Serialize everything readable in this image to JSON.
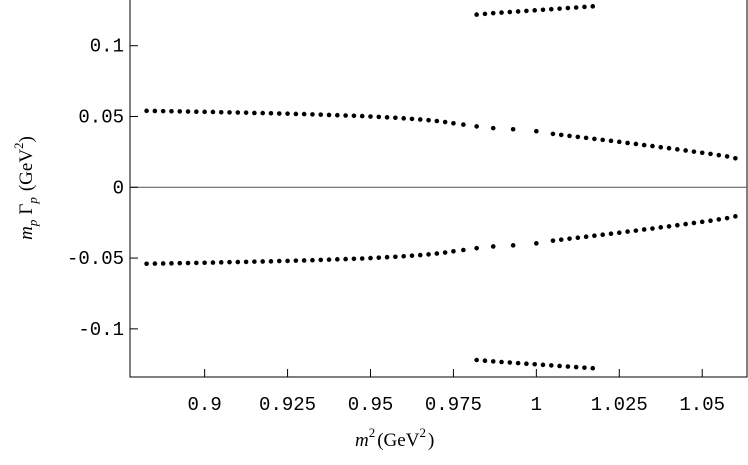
{
  "chart_data": {
    "type": "scatter",
    "xlabel_parts": {
      "base": "m",
      "base_sup": "2",
      "unit_open": "(GeV",
      "unit_sup": "2",
      "unit_close": ")"
    },
    "ylabel_parts": {
      "m": "m",
      "m_sub": "p",
      "gamma": "Γ",
      "gamma_sub": "p",
      "unit_open": "(GeV",
      "unit_sup": "2",
      "unit_close": ")"
    },
    "xlim": [
      0.8775,
      1.0635
    ],
    "ylim": [
      -0.134,
      0.133
    ],
    "x_ticks": [
      {
        "value": 0.9,
        "label": "0.9"
      },
      {
        "value": 0.925,
        "label": "0.925"
      },
      {
        "value": 0.95,
        "label": "0.95"
      },
      {
        "value": 0.975,
        "label": "0.975"
      },
      {
        "value": 1.0,
        "label": "1"
      },
      {
        "value": 1.025,
        "label": "1.025"
      },
      {
        "value": 1.05,
        "label": "1.05"
      }
    ],
    "y_ticks": [
      {
        "value": 0.1,
        "label": "0.1"
      },
      {
        "value": 0.05,
        "label": "0.05"
      },
      {
        "value": 0.0,
        "label": "0"
      },
      {
        "value": -0.05,
        "label": "-0.05"
      },
      {
        "value": -0.1,
        "label": "-0.1"
      }
    ],
    "zero_line": true,
    "grid": false,
    "series": [
      {
        "x": [
          0.8825,
          0.885,
          0.8875,
          0.89,
          0.8925,
          0.895,
          0.8975,
          0.9,
          0.9025,
          0.905,
          0.9075,
          0.91,
          0.9125,
          0.915,
          0.9175,
          0.92,
          0.9225,
          0.925,
          0.9275,
          0.93,
          0.9325,
          0.935,
          0.9375,
          0.94,
          0.9425,
          0.945,
          0.9475,
          0.95,
          0.9525,
          0.955,
          0.9575,
          0.96,
          0.9625,
          0.965,
          0.9675,
          0.97,
          0.9725,
          0.975,
          0.978,
          0.982,
          0.987,
          0.993,
          1.0,
          1.005,
          1.0075,
          1.01,
          1.0125,
          1.015,
          1.0175,
          1.02,
          1.0225,
          1.025,
          1.0275,
          1.03,
          1.0325,
          1.035,
          1.0375,
          1.04,
          1.0425,
          1.045,
          1.0475,
          1.05,
          1.0525,
          1.055,
          1.0575,
          1.06
        ],
        "y": [
          0.054,
          0.0539,
          0.0538,
          0.0537,
          0.0536,
          0.0535,
          0.0534,
          0.0533,
          0.0532,
          0.053,
          0.0529,
          0.0528,
          0.0527,
          0.0525,
          0.0524,
          0.0523,
          0.0521,
          0.052,
          0.0518,
          0.0517,
          0.0515,
          0.0513,
          0.0511,
          0.0509,
          0.0507,
          0.0505,
          0.0503,
          0.05,
          0.0497,
          0.0494,
          0.0491,
          0.0487,
          0.0483,
          0.0479,
          0.0474,
          0.0468,
          0.0461,
          0.0452,
          0.0443,
          0.043,
          0.0418,
          0.041,
          0.0396,
          0.0377,
          0.037,
          0.0363,
          0.0356,
          0.0349,
          0.0342,
          0.0335,
          0.0328,
          0.0321,
          0.0313,
          0.0306,
          0.0298,
          0.0291,
          0.0283,
          0.0276,
          0.0268,
          0.026,
          0.0252,
          0.0244,
          0.0236,
          0.0227,
          0.0218,
          0.0205
        ]
      },
      {
        "x": [
          0.8825,
          0.885,
          0.8875,
          0.89,
          0.8925,
          0.895,
          0.8975,
          0.9,
          0.9025,
          0.905,
          0.9075,
          0.91,
          0.9125,
          0.915,
          0.9175,
          0.92,
          0.9225,
          0.925,
          0.9275,
          0.93,
          0.9325,
          0.935,
          0.9375,
          0.94,
          0.9425,
          0.945,
          0.9475,
          0.95,
          0.9525,
          0.955,
          0.9575,
          0.96,
          0.9625,
          0.965,
          0.9675,
          0.97,
          0.9725,
          0.975,
          0.978,
          0.982,
          0.987,
          0.993,
          1.0,
          1.005,
          1.0075,
          1.01,
          1.0125,
          1.015,
          1.0175,
          1.02,
          1.0225,
          1.025,
          1.0275,
          1.03,
          1.0325,
          1.035,
          1.0375,
          1.04,
          1.0425,
          1.045,
          1.0475,
          1.05,
          1.0525,
          1.055,
          1.0575,
          1.06
        ],
        "y": [
          -0.054,
          -0.0539,
          -0.0538,
          -0.0537,
          -0.0536,
          -0.0535,
          -0.0534,
          -0.0533,
          -0.0532,
          -0.053,
          -0.0529,
          -0.0528,
          -0.0527,
          -0.0525,
          -0.0524,
          -0.0523,
          -0.0521,
          -0.052,
          -0.0518,
          -0.0517,
          -0.0515,
          -0.0513,
          -0.0511,
          -0.0509,
          -0.0507,
          -0.0505,
          -0.0503,
          -0.05,
          -0.0497,
          -0.0494,
          -0.0491,
          -0.0487,
          -0.0483,
          -0.0479,
          -0.0474,
          -0.0468,
          -0.0461,
          -0.0452,
          -0.0443,
          -0.043,
          -0.0418,
          -0.041,
          -0.0396,
          -0.0377,
          -0.037,
          -0.0363,
          -0.0356,
          -0.0349,
          -0.0342,
          -0.0335,
          -0.0328,
          -0.0321,
          -0.0313,
          -0.0306,
          -0.0298,
          -0.0291,
          -0.0283,
          -0.0276,
          -0.0268,
          -0.026,
          -0.0252,
          -0.0244,
          -0.0236,
          -0.0227,
          -0.0218,
          -0.0205
        ]
      },
      {
        "x": [
          0.982,
          0.9845,
          0.987,
          0.9895,
          0.992,
          0.9945,
          0.997,
          0.9995,
          1.002,
          1.0045,
          1.007,
          1.0095,
          1.012,
          1.0145,
          1.017
        ],
        "y": [
          0.122,
          0.1225,
          0.123,
          0.1234,
          0.1238,
          0.1242,
          0.1246,
          0.125,
          0.1254,
          0.1258,
          0.1262,
          0.1266,
          0.127,
          0.1274,
          0.1278
        ]
      },
      {
        "x": [
          0.982,
          0.9845,
          0.987,
          0.9895,
          0.992,
          0.9945,
          0.997,
          0.9995,
          1.002,
          1.0045,
          1.007,
          1.0095,
          1.012,
          1.0145,
          1.017
        ],
        "y": [
          -0.122,
          -0.1225,
          -0.123,
          -0.1234,
          -0.1238,
          -0.1242,
          -0.1246,
          -0.125,
          -0.1254,
          -0.1258,
          -0.1262,
          -0.1266,
          -0.127,
          -0.1274,
          -0.1278
        ]
      }
    ]
  }
}
